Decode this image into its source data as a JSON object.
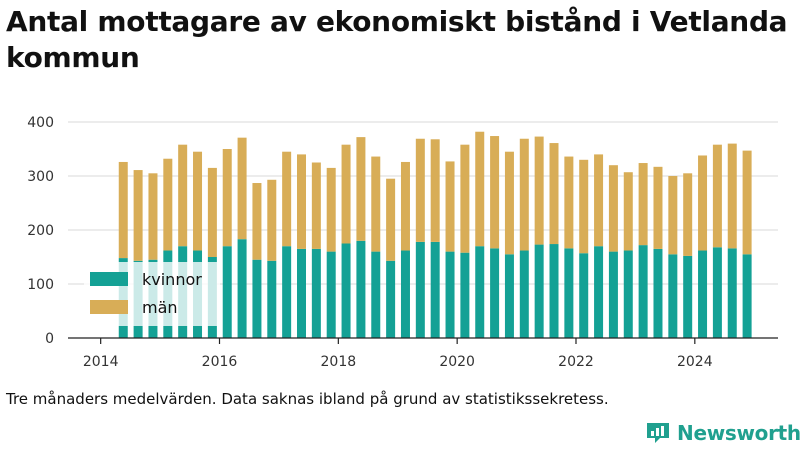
{
  "title": "Antal mottagare av ekonomiskt bistånd i Vetlanda kommun",
  "footnote": "Tre månaders medelvärden. Data saknas ibland på grund av statistikssekretess.",
  "brand": {
    "name": "Newsworthy",
    "icon": "newsworthy-logo-icon"
  },
  "colors": {
    "kvinnor": "#14a195",
    "man": "#d8ad57",
    "grid": "#d9d9d9",
    "axis": "#222222"
  },
  "chart_data": {
    "type": "bar",
    "stacked": true,
    "title": "Antal mottagare av ekonomiskt bistånd i Vetlanda kommun",
    "xlabel": "",
    "ylabel": "",
    "ylim": [
      0,
      400
    ],
    "yticks": [
      0,
      100,
      200,
      300,
      400
    ],
    "xticks": [
      2014,
      2016,
      2018,
      2020,
      2022,
      2024
    ],
    "xlim": [
      2013.45,
      2025.4
    ],
    "grid": true,
    "legend_position": "bottom-left",
    "x": [
      2014.38,
      2014.63,
      2014.88,
      2015.13,
      2015.38,
      2015.63,
      2015.88,
      2016.13,
      2016.38,
      2016.63,
      2016.88,
      2017.13,
      2017.38,
      2017.63,
      2017.88,
      2018.13,
      2018.38,
      2018.63,
      2018.88,
      2019.13,
      2019.38,
      2019.63,
      2019.88,
      2020.13,
      2020.38,
      2020.63,
      2020.88,
      2021.13,
      2021.38,
      2021.63,
      2021.88,
      2022.13,
      2022.38,
      2022.63,
      2022.88,
      2023.13,
      2023.38,
      2023.63,
      2023.88,
      2024.13,
      2024.38,
      2024.63,
      2024.88
    ],
    "series": [
      {
        "name": "kvinnor",
        "values": [
          148,
          143,
          145,
          162,
          170,
          162,
          150,
          170,
          183,
          145,
          143,
          170,
          165,
          165,
          160,
          175,
          180,
          160,
          143,
          162,
          178,
          178,
          160,
          158,
          170,
          166,
          155,
          162,
          173,
          174,
          166,
          157,
          170,
          160,
          162,
          172,
          165,
          155,
          152,
          162,
          168,
          166,
          155
        ]
      },
      {
        "name": "män",
        "values": [
          178,
          168,
          160,
          170,
          188,
          183,
          165,
          180,
          188,
          142,
          150,
          175,
          175,
          160,
          155,
          183,
          192,
          176,
          152,
          164,
          191,
          190,
          167,
          200,
          212,
          208,
          190,
          207,
          200,
          187,
          170,
          173,
          170,
          160,
          145,
          152,
          152,
          145,
          153,
          176,
          190,
          194,
          192
        ]
      }
    ]
  }
}
